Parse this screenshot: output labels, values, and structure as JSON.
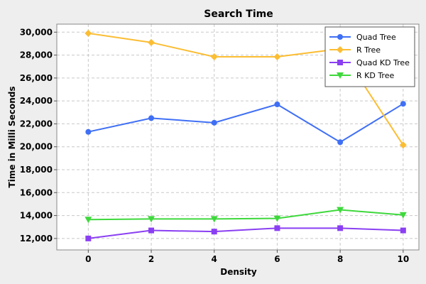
{
  "chart_data": {
    "type": "line",
    "title": "Search Time",
    "xlabel": "Density",
    "ylabel": "Time in Milli Seconds",
    "x": [
      0,
      2,
      4,
      6,
      8,
      10
    ],
    "xticks": [
      "0",
      "2",
      "4",
      "6",
      "8",
      "10"
    ],
    "xlim": [
      -1,
      10.5
    ],
    "ylim": [
      11000,
      30700
    ],
    "yticks": [
      12000,
      14000,
      16000,
      18000,
      20000,
      22000,
      24000,
      26000,
      28000,
      30000
    ],
    "ytick_labels": [
      "12,000",
      "14,000",
      "16,000",
      "18,000",
      "20,000",
      "22,000",
      "24,000",
      "26,000",
      "28,000",
      "30,000"
    ],
    "grid": true,
    "legend_position": "top-right",
    "series": [
      {
        "name": "Quad Tree",
        "color": "#3f6ff5",
        "marker": "circle",
        "values": [
          21300,
          22500,
          22100,
          23700,
          20400,
          23750
        ]
      },
      {
        "name": "R Tree",
        "color": "#fbbd33",
        "marker": "diamond",
        "values": [
          29900,
          29100,
          27850,
          27850,
          28550,
          20150
        ]
      },
      {
        "name": "Quad KD Tree",
        "color": "#8a3ff2",
        "marker": "square",
        "values": [
          12000,
          12700,
          12600,
          12900,
          12900,
          12700
        ]
      },
      {
        "name": "R KD Tree",
        "color": "#3ed83c",
        "marker": "triangle-down",
        "values": [
          13650,
          13700,
          13700,
          13750,
          14500,
          14050
        ]
      }
    ]
  }
}
